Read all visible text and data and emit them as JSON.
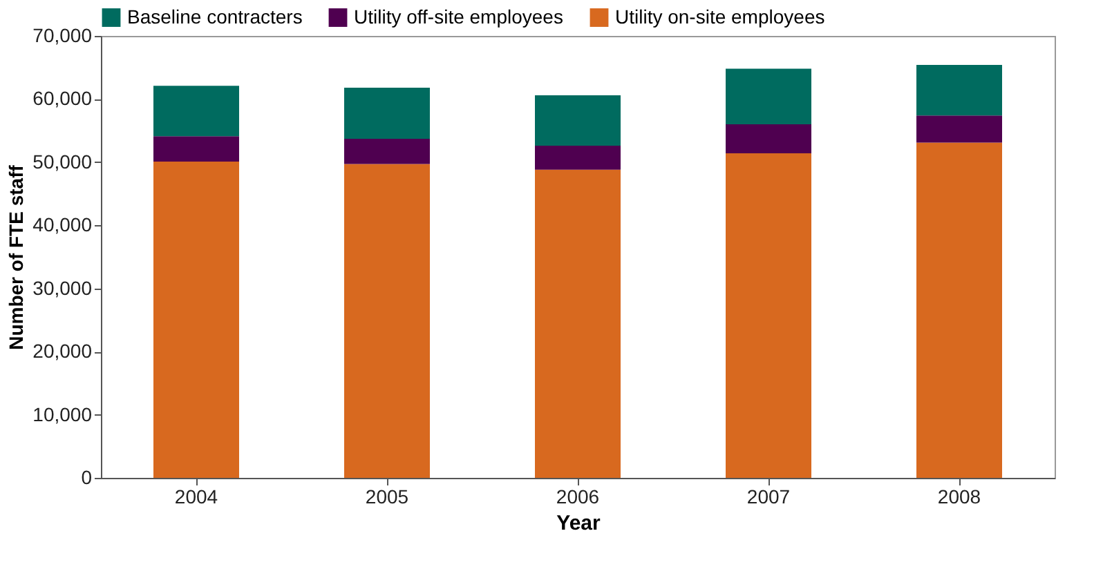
{
  "chart_data": {
    "type": "bar",
    "stacked": true,
    "xlabel": "Year",
    "ylabel": "Number of FTE staff",
    "categories": [
      "2004",
      "2005",
      "2006",
      "2007",
      "2008"
    ],
    "series": [
      {
        "name": "Utility on-site employees",
        "color": "#d8691f",
        "values": [
          50100,
          49700,
          48800,
          51400,
          53100
        ]
      },
      {
        "name": "Utility off-site employees",
        "color": "#4f0050",
        "values": [
          4000,
          4000,
          3800,
          4600,
          4300
        ]
      },
      {
        "name": "Baseline contracters",
        "color": "#006b5f",
        "values": [
          8000,
          8100,
          8000,
          8800,
          8000
        ]
      }
    ],
    "ylim": [
      0,
      70000
    ],
    "yticks": [
      0,
      {
        "value": 10000,
        "label": "10,000"
      },
      {
        "value": 20000,
        "label": "20,000"
      },
      {
        "value": 30000,
        "label": "30,000"
      },
      {
        "value": 40000,
        "label": "40,000"
      },
      {
        "value": 50000,
        "label": "50,000"
      },
      {
        "value": 60000,
        "label": "60,000"
      },
      {
        "value": 70000,
        "label": "70,000"
      }
    ],
    "legend": "top",
    "grid": false
  }
}
